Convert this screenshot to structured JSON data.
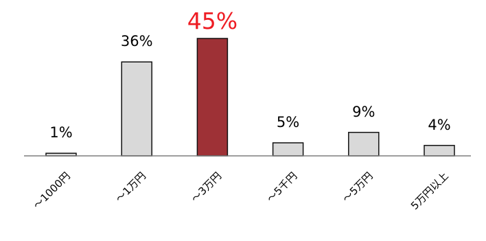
{
  "chart_data": {
    "type": "bar",
    "categories": [
      "～1000円",
      "～1万円",
      "～3万円",
      "～5千円",
      "～5万円",
      "5万円以上"
    ],
    "values": [
      1,
      36,
      45,
      5,
      9,
      4
    ],
    "value_labels": [
      "1%",
      "36%",
      "45%",
      "5%",
      "9%",
      "4%"
    ],
    "highlight_index": 2,
    "ylim": [
      0,
      45
    ],
    "grid": false,
    "legend": "none",
    "colors": {
      "bar": "#d9d9d9",
      "highlight_bar": "#9e3136",
      "highlight_label": "#ee1c23",
      "axis": "#7f7f7f"
    }
  }
}
